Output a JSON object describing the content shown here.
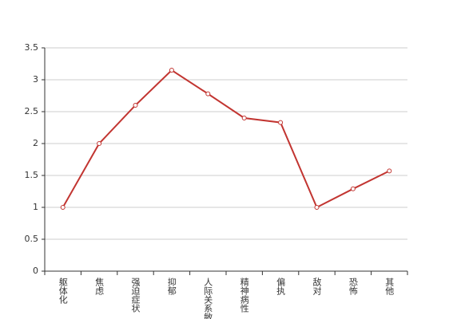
{
  "chart_data": {
    "type": "line",
    "categories": [
      "躯体化",
      "焦虑",
      "强迫症状",
      "抑郁",
      "人际关系敏感",
      "精神病性",
      "偏执",
      "敌对",
      "恐怖",
      "其他"
    ],
    "series": [
      {
        "color": "#c23531",
        "values": [
          1,
          2,
          2.6,
          3.15,
          2.78,
          2.4,
          2.33,
          1,
          1.29,
          1.57
        ]
      }
    ],
    "ylim": [
      0,
      3.5
    ],
    "yticks": [
      0,
      0.5,
      1,
      1.5,
      2,
      2.5,
      3,
      3.5
    ],
    "grid": true
  }
}
